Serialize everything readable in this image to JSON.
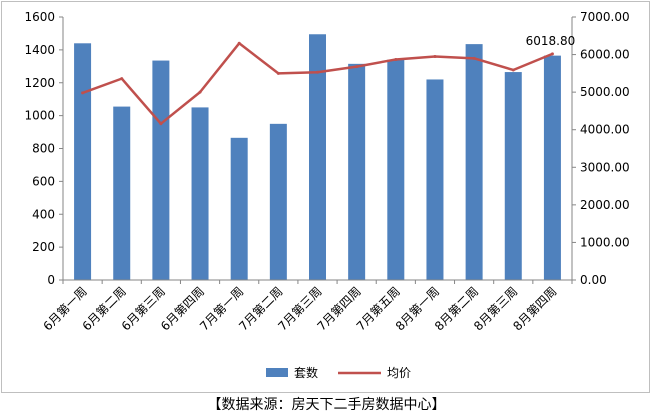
{
  "chart_data": {
    "type": "bar+line",
    "categories": [
      "6月第一周",
      "6月第二周",
      "6月第三周",
      "6月第四周",
      "7月第一周",
      "7月第二周",
      "7月第三周",
      "7月第四周",
      "7月第五周",
      "8月第一周",
      "8月第二周",
      "8月第三周",
      "8月第四周"
    ],
    "series": [
      {
        "name": "套数",
        "type": "bar",
        "axis": "left",
        "color": "#4f81bd",
        "values": [
          1440,
          1055,
          1335,
          1050,
          865,
          950,
          1495,
          1315,
          1340,
          1220,
          1435,
          1265,
          1365
        ]
      },
      {
        "name": "均价",
        "type": "line",
        "axis": "right",
        "color": "#c0504d",
        "values": [
          4980,
          5360,
          4160,
          5000,
          6300,
          5500,
          5530,
          5680,
          5870,
          5950,
          5900,
          5590,
          6018.8
        ]
      }
    ],
    "left_axis": {
      "ylim": [
        0,
        1600
      ],
      "ticks": [
        "0",
        "200",
        "400",
        "600",
        "800",
        "1000",
        "1200",
        "1400",
        "1600"
      ]
    },
    "right_axis": {
      "ylim": [
        0,
        7000
      ],
      "ticks": [
        "0.00",
        "1000.00",
        "2000.00",
        "3000.00",
        "4000.00",
        "5000.00",
        "6000.00",
        "7000.00"
      ]
    },
    "annotation": "6018.80",
    "legend_position": "bottom",
    "grid": false
  },
  "source_note": "【数据来源：房天下二手房数据中心】"
}
